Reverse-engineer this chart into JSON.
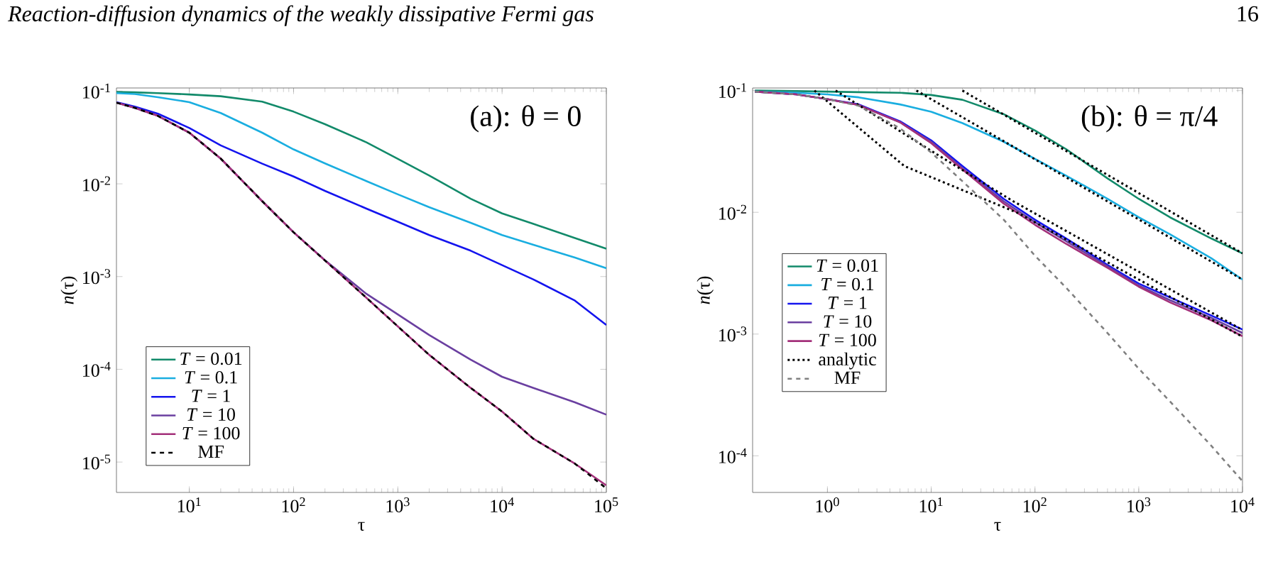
{
  "chart_data": [
    {
      "type": "line",
      "title": "Reaction-diffusion dynamics of the weakly dissipative Fermi gas",
      "annotations": [
        "16",
        "(a): θ = 0"
      ],
      "xlabel": "τ",
      "ylabel": "*n*(τ)",
      "log": "xy",
      "legend": "bottom left",
      "xlim": [
        2,
        100000
      ],
      "ylim": [
        4.7e-06,
        0.108
      ],
      "xticks": [
        {
          "value": 10,
          "label": "10$^{1}$"
        },
        {
          "value": 100,
          "label": "10$^{2}$"
        },
        {
          "value": 1000,
          "label": "10$^{3}$"
        },
        {
          "value": 10000,
          "label": "10$^{4}$"
        },
        {
          "value": 100000,
          "label": "10$^{5}$"
        }
      ],
      "yticks": [
        {
          "value": 0.1,
          "label": "10$^{-1}$"
        },
        {
          "value": 0.01,
          "label": "10$^{-2}$"
        },
        {
          "value": 0.001,
          "label": "10$^{-3}$"
        },
        {
          "value": 0.0001,
          "label": "10$^{-4}$"
        },
        {
          "value": 1e-05,
          "label": "10$^{-5}$"
        }
      ],
      "x": [
        2,
        3,
        5,
        10,
        20,
        50,
        100,
        200,
        500,
        1000,
        2000,
        5000,
        10000,
        20000,
        50000,
        100000
      ],
      "series": [
        {
          "name": "*T* = 0.01",
          "color": "#128a6a",
          "line_style": "solid",
          "values": [
            0.098,
            0.097,
            0.095,
            0.092,
            0.088,
            0.077,
            0.06,
            0.044,
            0.028,
            0.0186,
            0.0123,
            0.0069,
            0.0048,
            0.0037,
            0.0026,
            0.002
          ]
        },
        {
          "name": "*T* = 0.1",
          "color": "#1aaee0",
          "line_style": "solid",
          "values": [
            0.095,
            0.093,
            0.086,
            0.076,
            0.058,
            0.0356,
            0.0235,
            0.0166,
            0.0107,
            0.0077,
            0.0056,
            0.0038,
            0.0028,
            0.0022,
            0.0016,
            0.00123
          ]
        },
        {
          "name": "*T* = 1",
          "color": "#1414ee",
          "line_style": "solid",
          "values": [
            0.076,
            0.068,
            0.057,
            0.04,
            0.026,
            0.0165,
            0.012,
            0.0084,
            0.0054,
            0.0039,
            0.0028,
            0.0019,
            0.00133,
            0.00093,
            0.00055,
            0.0003
          ]
        },
        {
          "name": "*T* = 10",
          "color": "#6a3fa0",
          "line_style": "solid",
          "values": [
            0.075,
            0.066,
            0.054,
            0.0356,
            0.0187,
            0.0065,
            0.003,
            0.0015,
            0.00065,
            0.00039,
            0.000234,
            0.000127,
            8.3e-05,
            6.3e-05,
            4.4e-05,
            3.24e-05
          ]
        },
        {
          "name": "*T* = 100",
          "color": "#a3307a",
          "line_style": "solid",
          "values": [
            0.075,
            0.066,
            0.054,
            0.0356,
            0.0187,
            0.0065,
            0.003,
            0.00149,
            0.00059,
            0.00029,
            0.000143,
            6.3e-05,
            3.5e-05,
            1.78e-05,
            9.6e-06,
            5.6e-06
          ]
        },
        {
          "name": "MF",
          "color": "#000000",
          "line_style": "dashed",
          "values": [
            0.075,
            0.066,
            0.054,
            0.0356,
            0.0187,
            0.0065,
            0.003,
            0.00149,
            0.00059,
            0.00029,
            0.000143,
            6.3e-05,
            3.5e-05,
            1.78e-05,
            9.6e-06,
            5.2e-06
          ]
        }
      ]
    },
    {
      "type": "line",
      "annotations": [
        "(b): θ = π/4"
      ],
      "xlabel": "τ",
      "ylabel": "*n*(τ)",
      "log": "xy",
      "legend": "left",
      "xlim": [
        0.19,
        10000
      ],
      "ylim": [
        5e-05,
        0.105
      ],
      "xticks": [
        {
          "value": 1,
          "label": "10$^{0}$"
        },
        {
          "value": 10,
          "label": "10$^{1}$"
        },
        {
          "value": 100,
          "label": "10$^{2}$"
        },
        {
          "value": 1000,
          "label": "10$^{3}$"
        },
        {
          "value": 10000,
          "label": "10$^{4}$"
        }
      ],
      "yticks": [
        {
          "value": 0.1,
          "label": "10$^{-1}$"
        },
        {
          "value": 0.01,
          "label": "10$^{-2}$"
        },
        {
          "value": 0.001,
          "label": "10$^{-3}$"
        },
        {
          "value": 0.0001,
          "label": "10$^{-4}$"
        }
      ],
      "x": [
        0.2,
        0.5,
        1,
        2,
        5,
        10,
        20,
        50,
        100,
        200,
        500,
        1000,
        2000,
        5000,
        10000
      ],
      "series": [
        {
          "name": "*T* = 0.01",
          "color": "#128a6a",
          "line_style": "solid",
          "values": [
            0.1,
            0.099,
            0.098,
            0.097,
            0.096,
            0.092,
            0.084,
            0.064,
            0.047,
            0.033,
            0.019,
            0.0129,
            0.0091,
            0.0061,
            0.0046
          ]
        },
        {
          "name": "*T* = 0.1",
          "color": "#1aaee0",
          "line_style": "solid",
          "values": [
            0.098,
            0.096,
            0.093,
            0.088,
            0.077,
            0.067,
            0.054,
            0.038,
            0.0275,
            0.02,
            0.0129,
            0.0091,
            0.0066,
            0.0042,
            0.0028
          ]
        },
        {
          "name": "*T* = 1",
          "color": "#1414ee",
          "line_style": "solid",
          "values": [
            0.098,
            0.093,
            0.085,
            0.077,
            0.056,
            0.039,
            0.024,
            0.0129,
            0.0087,
            0.0061,
            0.0037,
            0.0026,
            0.002,
            0.00142,
            0.00109
          ]
        },
        {
          "name": "*T* = 10",
          "color": "#6a3fa0",
          "line_style": "solid",
          "values": [
            0.098,
            0.093,
            0.085,
            0.076,
            0.055,
            0.038,
            0.023,
            0.0123,
            0.0083,
            0.0058,
            0.0036,
            0.0025,
            0.0019,
            0.00136,
            0.00102
          ]
        },
        {
          "name": "*T* = 100",
          "color": "#a3307a",
          "line_style": "solid",
          "values": [
            0.098,
            0.093,
            0.085,
            0.076,
            0.055,
            0.037,
            0.0225,
            0.0118,
            0.0079,
            0.0055,
            0.0035,
            0.00245,
            0.00182,
            0.0013,
            0.00096
          ]
        },
        {
          "name": "analytic",
          "color": "#000000",
          "line_style": "dotted",
          "x": [
            20,
            10000
          ],
          "values": [
            0.1,
            0.0046
          ]
        },
        {
          "color": "#000000",
          "line_style": "dotted",
          "x": [
            7.2,
            10000
          ],
          "values": [
            0.1,
            0.0028
          ]
        },
        {
          "color": "#000000",
          "line_style": "dotted",
          "x": [
            0.75,
            5.5,
            70,
            10000
          ],
          "values": [
            0.1,
            0.024,
            0.0098,
            0.00095
          ]
        },
        {
          "color": "#000000",
          "line_style": "dotted",
          "x": [
            1.2,
            10,
            60,
            10000
          ],
          "values": [
            0.1,
            0.032,
            0.0125,
            0.00108
          ]
        },
        {
          "name": "MF",
          "color": "#808080",
          "line_style": "dashed",
          "values": [
            0.098,
            0.093,
            0.085,
            0.075,
            0.049,
            0.031,
            0.018,
            0.0087,
            0.0044,
            0.0024,
            0.00102,
            0.00052,
            0.00028,
            0.000121,
            6.2e-05
          ]
        }
      ]
    }
  ]
}
